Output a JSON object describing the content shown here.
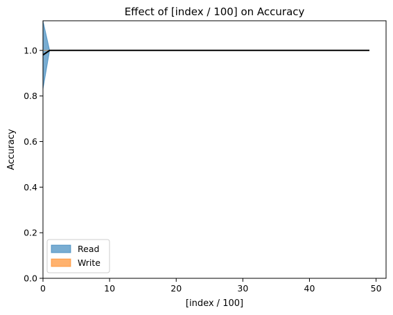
{
  "chart_data": {
    "type": "area",
    "title": "Effect of [index / 100] on Accuracy",
    "xlabel": "[index / 100]",
    "ylabel": "Accuracy",
    "xlim": [
      0,
      51.5
    ],
    "ylim": [
      0.0,
      1.13
    ],
    "xticks": [
      0,
      10,
      20,
      30,
      40,
      50
    ],
    "yticks": [
      0.0,
      0.2,
      0.4,
      0.6,
      0.8,
      1.0
    ],
    "xtick_labels": [
      "0",
      "10",
      "20",
      "30",
      "40",
      "50"
    ],
    "ytick_labels": [
      "0.0",
      "0.2",
      "0.4",
      "0.6",
      "0.8",
      "1.0"
    ],
    "grid": false,
    "legend_position": "lower-left",
    "series": [
      {
        "name": "Read",
        "color": "#1f77b4",
        "fill_opacity": 0.6,
        "bands": [
          {
            "x": 0,
            "low": 0.83,
            "high": 1.13
          },
          {
            "x": 1,
            "low": 1.0,
            "high": 1.0
          },
          {
            "x": 49,
            "low": 1.0,
            "high": 1.0
          }
        ]
      },
      {
        "name": "Write",
        "color": "#ff7f0e",
        "fill_opacity": 0.6,
        "bands": [
          {
            "x": 0,
            "low": 1.0,
            "high": 1.0
          },
          {
            "x": 49,
            "low": 1.0,
            "high": 1.0
          }
        ]
      }
    ],
    "mean_line": {
      "color": "#000000",
      "points": [
        {
          "x": 0,
          "y": 0.98
        },
        {
          "x": 1,
          "y": 1.0
        },
        {
          "x": 49,
          "y": 1.0
        }
      ]
    }
  }
}
